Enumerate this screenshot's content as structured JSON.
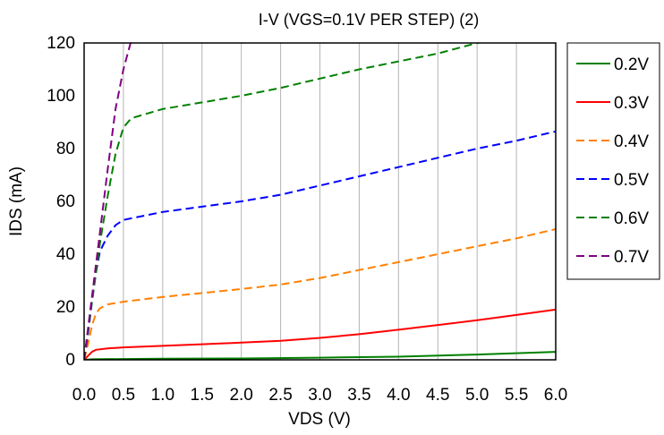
{
  "chart_data": {
    "type": "line",
    "title": "I-V (VGS=0.1V PER STEP) (2)",
    "xlabel": "VDS (V)",
    "ylabel": "IDS (mA)",
    "xlim": [
      0,
      6
    ],
    "ylim": [
      0,
      120
    ],
    "x_ticks": [
      "0.0",
      "0.5",
      "1.0",
      "1.5",
      "2.0",
      "2.5",
      "3.0",
      "3.5",
      "4.0",
      "4.5",
      "5.0",
      "5.5",
      "6.0"
    ],
    "y_ticks": [
      "0",
      "20",
      "40",
      "60",
      "80",
      "100",
      "120"
    ],
    "grid": "vertical",
    "legend_position": "right",
    "series": [
      {
        "name": "0.2V",
        "color": "#008000",
        "dash": "solid",
        "points": [
          [
            0,
            0
          ],
          [
            0.1,
            0.2
          ],
          [
            0.5,
            0.3
          ],
          [
            1,
            0.4
          ],
          [
            2,
            0.5
          ],
          [
            3,
            0.8
          ],
          [
            4,
            1.2
          ],
          [
            5,
            2
          ],
          [
            6,
            3
          ]
        ]
      },
      {
        "name": "0.3V",
        "color": "#ff0000",
        "dash": "solid",
        "points": [
          [
            0,
            0
          ],
          [
            0.05,
            1.5
          ],
          [
            0.1,
            3
          ],
          [
            0.15,
            3.8
          ],
          [
            0.3,
            4.3
          ],
          [
            0.5,
            4.7
          ],
          [
            1,
            5.3
          ],
          [
            1.5,
            5.9
          ],
          [
            2,
            6.5
          ],
          [
            2.5,
            7.2
          ],
          [
            3,
            8.3
          ],
          [
            3.5,
            9.7
          ],
          [
            4,
            11.4
          ],
          [
            4.5,
            13.2
          ],
          [
            5,
            15
          ],
          [
            5.5,
            17
          ],
          [
            6,
            19
          ]
        ]
      },
      {
        "name": "0.4V",
        "color": "#ff8000",
        "dash": "dashed",
        "points": [
          [
            0,
            0
          ],
          [
            0.05,
            6
          ],
          [
            0.1,
            13
          ],
          [
            0.15,
            17.5
          ],
          [
            0.2,
            19.5
          ],
          [
            0.3,
            21
          ],
          [
            0.5,
            22
          ],
          [
            1,
            23.8
          ],
          [
            1.5,
            25.3
          ],
          [
            2,
            26.8
          ],
          [
            2.5,
            28.5
          ],
          [
            3,
            31
          ],
          [
            3.5,
            34
          ],
          [
            4,
            37
          ],
          [
            4.5,
            40
          ],
          [
            5,
            43
          ],
          [
            5.5,
            46
          ],
          [
            6,
            49.5
          ]
        ]
      },
      {
        "name": "0.5V",
        "color": "#0000ff",
        "dash": "dashed",
        "points": [
          [
            0,
            0
          ],
          [
            0.05,
            10
          ],
          [
            0.1,
            22
          ],
          [
            0.15,
            33
          ],
          [
            0.2,
            41
          ],
          [
            0.3,
            47
          ],
          [
            0.4,
            51
          ],
          [
            0.5,
            53
          ],
          [
            1,
            56
          ],
          [
            1.5,
            58
          ],
          [
            2,
            60
          ],
          [
            2.5,
            62.5
          ],
          [
            3,
            66
          ],
          [
            3.5,
            69.5
          ],
          [
            4,
            73
          ],
          [
            4.5,
            76.5
          ],
          [
            5,
            80
          ],
          [
            5.5,
            83
          ],
          [
            6,
            86.5
          ]
        ]
      },
      {
        "name": "0.6V",
        "color": "#008000",
        "dash": "dashed",
        "points": [
          [
            0,
            0
          ],
          [
            0.1,
            22
          ],
          [
            0.2,
            44
          ],
          [
            0.3,
            62
          ],
          [
            0.4,
            78
          ],
          [
            0.5,
            88
          ],
          [
            0.6,
            91.5
          ],
          [
            1,
            95
          ],
          [
            1.5,
            97.5
          ],
          [
            2,
            100
          ],
          [
            2.5,
            103
          ],
          [
            3,
            106.5
          ],
          [
            3.5,
            110
          ],
          [
            4,
            113
          ],
          [
            4.5,
            116
          ],
          [
            5,
            120
          ],
          [
            5.2,
            121
          ]
        ]
      },
      {
        "name": "0.7V",
        "color": "#800080",
        "dash": "dashed",
        "points": [
          [
            0,
            0
          ],
          [
            0.1,
            24
          ],
          [
            0.2,
            48
          ],
          [
            0.3,
            72
          ],
          [
            0.4,
            95
          ],
          [
            0.5,
            110
          ],
          [
            0.6,
            121
          ]
        ]
      }
    ]
  }
}
